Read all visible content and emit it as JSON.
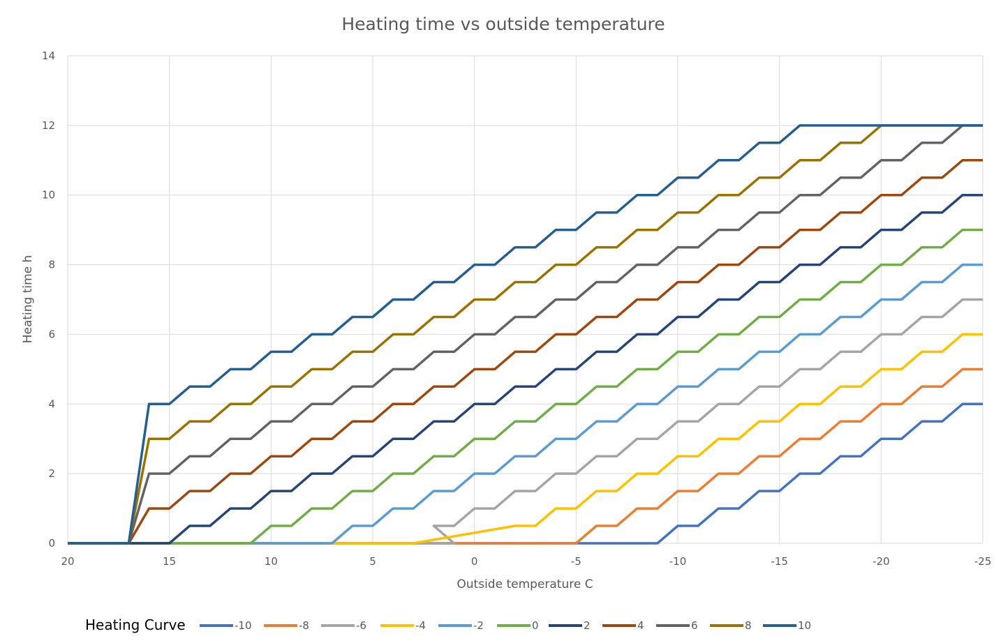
{
  "chart_data": {
    "type": "line",
    "title": "Heating time vs outside temperature",
    "xlabel": "Outside temperature  C",
    "ylabel": "Heating time h",
    "xlim": [
      20,
      -25
    ],
    "ylim": [
      0,
      14
    ],
    "x_ticks": [
      20,
      15,
      10,
      5,
      0,
      -5,
      -10,
      -15,
      -20,
      -25
    ],
    "x_tick_labels": [
      "20",
      "15",
      "10",
      "5",
      "0",
      "-5",
      "-10",
      "-15",
      "-20",
      "-25"
    ],
    "y_ticks": [
      0,
      2,
      4,
      6,
      8,
      10,
      12,
      14
    ],
    "y_tick_labels": [
      "0",
      "2",
      "4",
      "6",
      "8",
      "10",
      "12",
      "14"
    ],
    "grid": true,
    "legend": {
      "title": "Heating Curve",
      "position": "bottom"
    },
    "rule": {
      "description": "heating hours step +0.5 every 1 C colder, capped at 12; zero above 17 C",
      "start_x": 17,
      "cap": 12
    },
    "series": [
      {
        "name": "-10",
        "color": "#4472c4",
        "zero_until": -9,
        "first_value": 0.5,
        "first_x": -10
      },
      {
        "name": "-8",
        "color": "#ed7d31",
        "zero_until": -5,
        "first_value": 0.5,
        "first_x": -6
      },
      {
        "name": "-6",
        "color": "#a5a5a5",
        "zero_until": 1,
        "first_value": 0.5,
        "first_x": 2
      },
      {
        "name": "-4",
        "color": "#ffc000",
        "zero_until": 3,
        "first_value": 0.5,
        "first_x": -2
      },
      {
        "name": "-2",
        "color": "#5b9bd5",
        "zero_until": 7,
        "first_value": 0.5,
        "first_x": 6
      },
      {
        "name": "0",
        "color": "#70ad47",
        "zero_until": 11,
        "first_value": 0.5,
        "first_x": 10
      },
      {
        "name": "2",
        "color": "#264478",
        "zero_until": 15,
        "first_value": 0.5,
        "first_x": 14
      },
      {
        "name": "4",
        "color": "#9e480e",
        "zero_until": 17,
        "first_value": 1,
        "first_x": 16
      },
      {
        "name": "6",
        "color": "#636363",
        "zero_until": 17,
        "first_value": 2,
        "first_x": 16
      },
      {
        "name": "8",
        "color": "#997300",
        "zero_until": 17,
        "first_value": 3,
        "first_x": 16
      },
      {
        "name": "10",
        "color": "#255e91",
        "zero_until": 17,
        "first_value": 4,
        "first_x": 16
      }
    ]
  }
}
